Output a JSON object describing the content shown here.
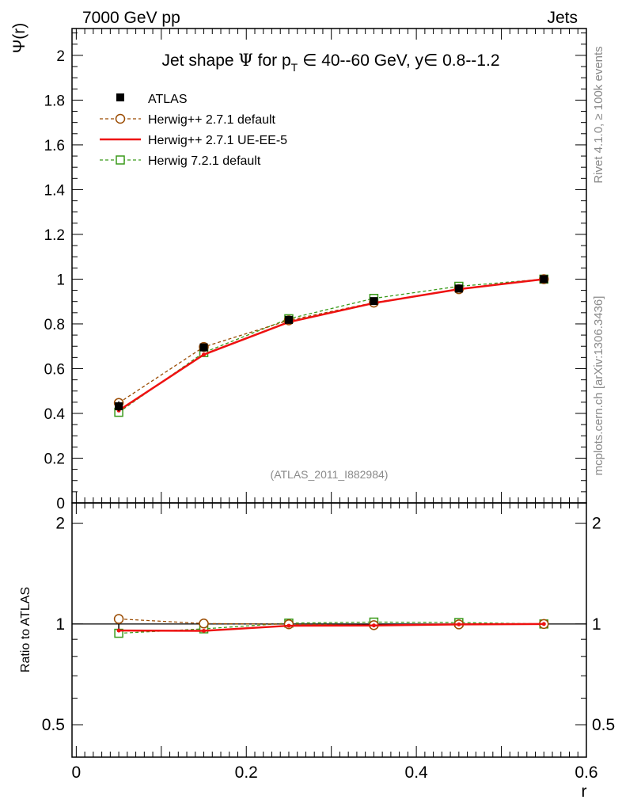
{
  "header": {
    "left_title": "7000 GeV pp",
    "right_title": "Jets"
  },
  "side_labels": {
    "rivet": "Rivet 4.1.0, ≥ 100k events",
    "mcplots": "mcplots.cern.ch [arXiv:1306.3436]"
  },
  "analysis_id": "(ATLAS_2011_I882984)",
  "colors": {
    "atlas": "#000000",
    "herwigpp_default": "#9a4a00",
    "herwigpp_ue": "#ee1111",
    "herwig7": "#3a9a1a",
    "side_text": "#8a8a8a"
  },
  "chart_data": [
    {
      "type": "line",
      "panel": "main",
      "title": {
        "pre": "Jet shape ",
        "psi": "Ψ",
        "mid": " for p",
        "sub": "T",
        "range": " ∈ 40--60 GeV, y∈ 0.8--1.2"
      },
      "xlabel": "r",
      "ylabel": "Ψ(r)",
      "xlim": [
        -0.005,
        0.6
      ],
      "ylim": [
        0,
        2.12
      ],
      "yticks": [
        0,
        0.2,
        0.4,
        0.6,
        0.8,
        1,
        1.2,
        1.4,
        1.6,
        1.8,
        2
      ],
      "ytick_labels": [
        "0",
        "0.2",
        "0.4",
        "0.6",
        "0.8",
        "1",
        "1.2",
        "1.4",
        "1.6",
        "1.8",
        "2"
      ],
      "legend_position": "top-left",
      "series": [
        {
          "key": "atlas",
          "name": "ATLAS",
          "style": "marker-square-filled",
          "x": [
            0.05,
            0.15,
            0.25,
            0.35,
            0.45,
            0.55
          ],
          "values": [
            0.432,
            0.695,
            0.818,
            0.902,
            0.958,
            1.0
          ],
          "errors": [
            0.022,
            0.018,
            0.012,
            0.008,
            0.005,
            0.0
          ]
        },
        {
          "key": "herwigpp_default",
          "name": "Herwig++ 2.7.1 default",
          "style": "dashed-open-circle",
          "x": [
            0.05,
            0.15,
            0.25,
            0.35,
            0.45,
            0.55
          ],
          "values": [
            0.447,
            0.697,
            0.816,
            0.895,
            0.955,
            1.0
          ]
        },
        {
          "key": "herwigpp_ue",
          "name": "Herwig++ 2.7.1 UE-EE-5",
          "style": "solid",
          "x": [
            0.05,
            0.15,
            0.25,
            0.35,
            0.45,
            0.55
          ],
          "values": [
            0.413,
            0.663,
            0.808,
            0.893,
            0.955,
            1.0
          ]
        },
        {
          "key": "herwig7",
          "name": "Herwig 7.2.1 default",
          "style": "dashed-open-square",
          "x": [
            0.05,
            0.15,
            0.25,
            0.35,
            0.45,
            0.55
          ],
          "values": [
            0.405,
            0.672,
            0.823,
            0.914,
            0.968,
            1.0
          ]
        }
      ]
    },
    {
      "type": "line",
      "panel": "ratio",
      "ylabel": "Ratio to ATLAS",
      "xlabel": "r",
      "xlim": [
        -0.005,
        0.6
      ],
      "ylim": [
        0.4,
        2.3
      ],
      "yscale": "log",
      "yticks": [
        0.5,
        1,
        2
      ],
      "ytick_labels": [
        "0.5",
        "1",
        "2"
      ],
      "xticks": [
        0,
        0.2,
        0.4,
        0.6
      ],
      "xtick_labels": [
        "0",
        "0.2",
        "0.4",
        "0.6"
      ],
      "reference": 1,
      "series": [
        {
          "key": "herwigpp_default",
          "x": [
            0.05,
            0.15,
            0.25,
            0.35,
            0.45,
            0.55
          ],
          "values": [
            1.035,
            1.003,
            0.998,
            0.992,
            0.997,
            1.0
          ]
        },
        {
          "key": "herwigpp_ue",
          "x": [
            0.05,
            0.15,
            0.25,
            0.35,
            0.45,
            0.55
          ],
          "values": [
            0.956,
            0.954,
            0.988,
            0.99,
            0.997,
            1.0
          ]
        },
        {
          "key": "herwig7",
          "x": [
            0.05,
            0.15,
            0.25,
            0.35,
            0.45,
            0.55
          ],
          "values": [
            0.938,
            0.967,
            1.006,
            1.013,
            1.01,
            1.0
          ]
        }
      ]
    }
  ]
}
